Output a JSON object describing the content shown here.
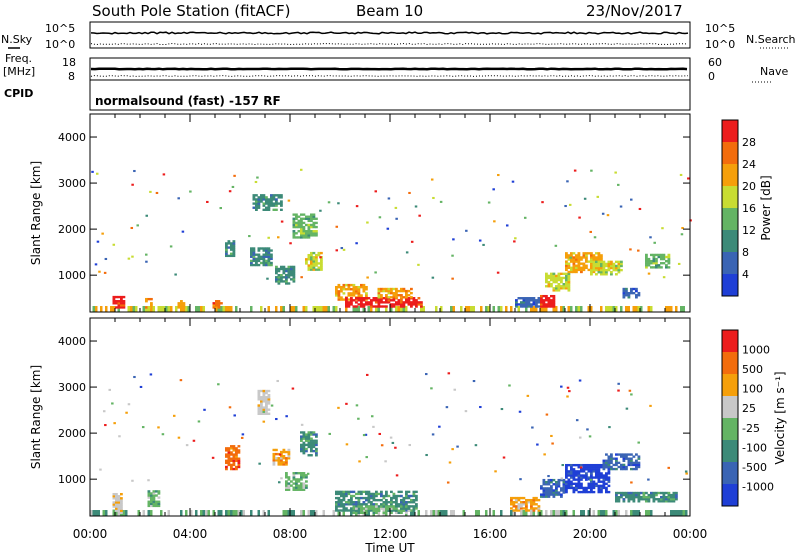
{
  "header": {
    "station": "South Pole Station (fitACF)",
    "beam": "Beam 10",
    "date": "23/Nov/2017"
  },
  "status": {
    "nsky_label": "N.Sky",
    "nsearch_label": "N.Search",
    "freq_label_1": "Freq.",
    "freq_label_2": "[MHz]",
    "nave_label": "Nave",
    "cpid_label": "CPID",
    "cpid_text": "normalsound (fast) -157 RF",
    "noise_ticks_left": [
      "10^5",
      "10^0"
    ],
    "noise_ticks_right": [
      "10^5",
      "10^0"
    ],
    "freq_ticks": [
      "18",
      "8"
    ],
    "nave_ticks": [
      "60",
      "0"
    ]
  },
  "chart_data": [
    {
      "type": "heatmap",
      "name": "power",
      "ylabel": "Slant Range [km]",
      "ylim": [
        200,
        4500
      ],
      "yticks": [
        "1000",
        "2000",
        "3000",
        "4000"
      ],
      "colorbar_label": "Power [dB]",
      "colorbar_ticks": [
        "4",
        "8",
        "12",
        "16",
        "20",
        "24",
        "28"
      ],
      "colors": [
        "#1f3fd6",
        "#3a64b4",
        "#3c8a78",
        "#64b464",
        "#c8dc32",
        "#f59f0a",
        "#f36c0c",
        "#ec1c1c"
      ],
      "regions": [
        {
          "t": [
            0.9,
            1.4
          ],
          "r": [
            280,
            520
          ],
          "level": 7
        },
        {
          "t": [
            2.2,
            2.5
          ],
          "r": [
            280,
            480
          ],
          "level": 5
        },
        {
          "t": [
            3.5,
            3.8
          ],
          "r": [
            280,
            460
          ],
          "level": 5
        },
        {
          "t": [
            4.9,
            5.2
          ],
          "r": [
            280,
            460
          ],
          "level": 6
        },
        {
          "t": [
            5.4,
            5.7
          ],
          "r": [
            1400,
            1750
          ],
          "level": 2
        },
        {
          "t": [
            6.4,
            7.2
          ],
          "r": [
            1200,
            1600
          ],
          "level": 2
        },
        {
          "t": [
            6.5,
            7.6
          ],
          "r": [
            2400,
            2750
          ],
          "level": 2
        },
        {
          "t": [
            7.4,
            8.1
          ],
          "r": [
            800,
            1200
          ],
          "level": 2
        },
        {
          "t": [
            8.1,
            9.0
          ],
          "r": [
            1800,
            2300
          ],
          "level": 3
        },
        {
          "t": [
            8.6,
            9.2
          ],
          "r": [
            1100,
            1500
          ],
          "level": 4
        },
        {
          "t": [
            9.8,
            11.0
          ],
          "r": [
            450,
            800
          ],
          "level": 5
        },
        {
          "t": [
            10.2,
            13.2
          ],
          "r": [
            300,
            500
          ],
          "level": 7
        },
        {
          "t": [
            11.5,
            12.8
          ],
          "r": [
            500,
            700
          ],
          "level": 5
        },
        {
          "t": [
            17.0,
            18.0
          ],
          "r": [
            300,
            500
          ],
          "level": 1
        },
        {
          "t": [
            18.0,
            18.6
          ],
          "r": [
            300,
            550
          ],
          "level": 7
        },
        {
          "t": [
            18.2,
            19.2
          ],
          "r": [
            650,
            1050
          ],
          "level": 4
        },
        {
          "t": [
            19.0,
            20.5
          ],
          "r": [
            1050,
            1500
          ],
          "level": 5
        },
        {
          "t": [
            20.0,
            21.3
          ],
          "r": [
            1000,
            1300
          ],
          "level": 4
        },
        {
          "t": [
            21.3,
            22.0
          ],
          "r": [
            500,
            700
          ],
          "level": 1
        },
        {
          "t": [
            22.2,
            23.2
          ],
          "r": [
            1150,
            1450
          ],
          "level": 3
        }
      ],
      "ground_band": {
        "r": [
          200,
          330
        ],
        "levels": [
          3,
          4,
          5
        ]
      }
    },
    {
      "type": "heatmap",
      "name": "velocity",
      "xlabel": "Time UT",
      "ylabel": "Slant Range [km]",
      "ylim": [
        200,
        4500
      ],
      "xlim": [
        "00:00",
        "00:00"
      ],
      "xticks": [
        "00:00",
        "04:00",
        "08:00",
        "12:00",
        "16:00",
        "20:00",
        "00:00"
      ],
      "yticks": [
        "1000",
        "2000",
        "3000",
        "4000"
      ],
      "colorbar_label": "Velocity [m s⁻¹]",
      "colorbar_ticks": [
        "1000",
        "500",
        "100",
        "25",
        "-25",
        "-100",
        "-500",
        "-1000"
      ],
      "colors": [
        "#1f3fd6",
        "#3a64b4",
        "#3c8a78",
        "#64b464",
        "#c8c8c8",
        "#f59f0a",
        "#f36c0c",
        "#ec1c1c"
      ],
      "regions": [
        {
          "t": [
            0.9,
            1.3
          ],
          "r": [
            250,
            700
          ],
          "level": 4
        },
        {
          "t": [
            2.3,
            2.8
          ],
          "r": [
            400,
            750
          ],
          "level": 3
        },
        {
          "t": [
            5.4,
            5.9
          ],
          "r": [
            1200,
            1700
          ],
          "level": 6
        },
        {
          "t": [
            6.7,
            7.1
          ],
          "r": [
            2400,
            2900
          ],
          "level": 4
        },
        {
          "t": [
            7.3,
            7.9
          ],
          "r": [
            1300,
            1650
          ],
          "level": 5
        },
        {
          "t": [
            7.8,
            8.6
          ],
          "r": [
            750,
            1150
          ],
          "level": 3
        },
        {
          "t": [
            8.4,
            9.0
          ],
          "r": [
            1500,
            2000
          ],
          "level": 2
        },
        {
          "t": [
            9.8,
            13.0
          ],
          "r": [
            300,
            750
          ],
          "level": 2
        },
        {
          "t": [
            10.5,
            12.8
          ],
          "r": [
            250,
            400
          ],
          "level": 3
        },
        {
          "t": [
            16.8,
            18.0
          ],
          "r": [
            300,
            600
          ],
          "level": 5
        },
        {
          "t": [
            18.0,
            19.0
          ],
          "r": [
            600,
            1000
          ],
          "level": 1
        },
        {
          "t": [
            19.0,
            20.8
          ],
          "r": [
            700,
            1300
          ],
          "level": 0
        },
        {
          "t": [
            20.5,
            22.0
          ],
          "r": [
            1200,
            1550
          ],
          "level": 1
        },
        {
          "t": [
            21.0,
            23.5
          ],
          "r": [
            500,
            700
          ],
          "level": 2
        }
      ],
      "ground_band": {
        "r": [
          200,
          330
        ],
        "levels": [
          3,
          4,
          2
        ]
      }
    }
  ]
}
